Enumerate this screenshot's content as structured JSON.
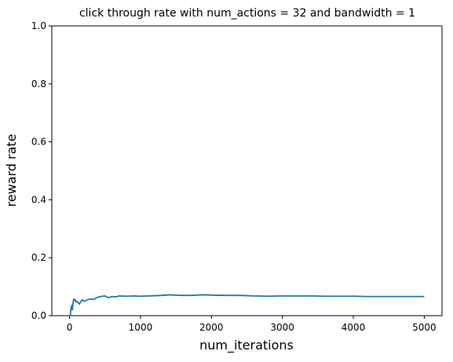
{
  "chart_data": {
    "type": "line",
    "title": "click through rate with num_actions = 32 and bandwidth = 1",
    "xlabel": "num_iterations",
    "ylabel": "reward rate",
    "xlim": [
      -250,
      5250
    ],
    "ylim": [
      0,
      1
    ],
    "xticks": [
      0,
      1000,
      2000,
      3000,
      4000,
      5000
    ],
    "yticks": [
      0.0,
      0.2,
      0.4,
      0.6,
      0.8,
      1.0
    ],
    "ytick_labels": [
      "0.0",
      "0.2",
      "0.4",
      "0.6",
      "0.8",
      "1.0"
    ],
    "grid": false,
    "legend": "none",
    "series": [
      {
        "color": "#1f77b4",
        "x": [
          0,
          10,
          20,
          30,
          40,
          50,
          60,
          70,
          80,
          90,
          100,
          120,
          140,
          160,
          180,
          200,
          230,
          260,
          300,
          340,
          380,
          420,
          460,
          500,
          550,
          600,
          650,
          700,
          800,
          900,
          1000,
          1100,
          1200,
          1300,
          1400,
          1500,
          1600,
          1700,
          1800,
          1900,
          2000,
          2200,
          2400,
          2600,
          2800,
          3000,
          3200,
          3400,
          3600,
          3800,
          4000,
          4200,
          4400,
          4600,
          4800,
          5000
        ],
        "y": [
          0.0,
          0.0,
          0.025,
          0.035,
          0.02,
          0.045,
          0.058,
          0.052,
          0.055,
          0.048,
          0.05,
          0.045,
          0.04,
          0.05,
          0.055,
          0.05,
          0.052,
          0.055,
          0.058,
          0.056,
          0.062,
          0.065,
          0.067,
          0.068,
          0.062,
          0.066,
          0.065,
          0.068,
          0.067,
          0.068,
          0.067,
          0.068,
          0.069,
          0.07,
          0.072,
          0.071,
          0.07,
          0.07,
          0.071,
          0.072,
          0.071,
          0.07,
          0.07,
          0.068,
          0.067,
          0.068,
          0.068,
          0.068,
          0.067,
          0.067,
          0.067,
          0.066,
          0.066,
          0.066,
          0.066,
          0.066
        ]
      }
    ]
  }
}
